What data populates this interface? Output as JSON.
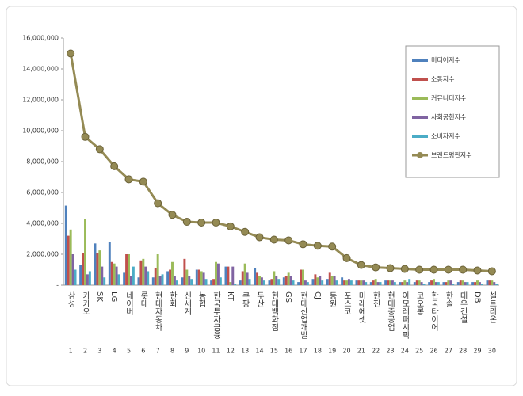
{
  "chart_data": {
    "type": "bar",
    "categories": [
      "삼성",
      "카카오",
      "SK",
      "LG",
      "네이버",
      "롯데",
      "현대자동차",
      "한화",
      "신세계",
      "농협",
      "한국투자금융",
      "KT",
      "쿠팡",
      "두산",
      "현대백화점",
      "GS",
      "현대산업개발",
      "CJ",
      "동원",
      "포스코",
      "미래에셋",
      "한진",
      "현대중공업",
      "아모레퍼시픽",
      "코오롱",
      "한국타이어",
      "한솔",
      "대우건설",
      "DB",
      "셀트리온"
    ],
    "ranks": [
      1,
      2,
      3,
      4,
      5,
      6,
      7,
      8,
      9,
      10,
      11,
      12,
      13,
      14,
      15,
      16,
      17,
      18,
      19,
      20,
      21,
      22,
      23,
      24,
      25,
      26,
      27,
      28,
      29,
      30
    ],
    "ylim": [
      0,
      16000000
    ],
    "yticks": [
      {
        "value": 0,
        "label": "-"
      },
      {
        "value": 2000000,
        "label": "2,000,000"
      },
      {
        "value": 4000000,
        "label": "4,000,000"
      },
      {
        "value": 6000000,
        "label": "6,000,000"
      },
      {
        "value": 8000000,
        "label": "8,000,000"
      },
      {
        "value": 10000000,
        "label": "10,000,000"
      },
      {
        "value": 12000000,
        "label": "12,000,000"
      },
      {
        "value": 14000000,
        "label": "14,000,000"
      },
      {
        "value": 16000000,
        "label": "16,000,000"
      }
    ],
    "grid": false,
    "legend": "top-right",
    "series": [
      {
        "name": "미디어지수",
        "color": "#4f81bd",
        "values": [
          5150000,
          1300000,
          2700000,
          2800000,
          800000,
          500000,
          500000,
          900000,
          500000,
          1000000,
          300000,
          1200000,
          300000,
          1100000,
          300000,
          500000,
          200000,
          400000,
          400000,
          500000,
          300000,
          200000,
          300000,
          200000,
          200000,
          200000,
          200000,
          200000,
          200000,
          300000
        ]
      },
      {
        "name": "소통지수",
        "color": "#c0504d",
        "values": [
          3200000,
          2100000,
          2100000,
          1500000,
          2000000,
          1600000,
          1100000,
          1000000,
          1700000,
          1000000,
          400000,
          1200000,
          900000,
          800000,
          400000,
          600000,
          1000000,
          700000,
          800000,
          300000,
          300000,
          300000,
          300000,
          200000,
          300000,
          300000,
          200000,
          300000,
          200000,
          300000
        ]
      },
      {
        "name": "커뮤니티지수",
        "color": "#9bbb59",
        "values": [
          3600000,
          4300000,
          2250000,
          1400000,
          2000000,
          1700000,
          2000000,
          1500000,
          1000000,
          900000,
          1500000,
          200000,
          1400000,
          600000,
          900000,
          800000,
          1000000,
          500000,
          600000,
          300000,
          300000,
          400000,
          300000,
          300000,
          300000,
          400000,
          300000,
          300000,
          300000,
          300000
        ]
      },
      {
        "name": "사회공헌지수",
        "color": "#8064a2",
        "values": [
          2000000,
          700000,
          1200000,
          1200000,
          600000,
          1200000,
          600000,
          600000,
          600000,
          800000,
          1400000,
          1200000,
          800000,
          500000,
          600000,
          600000,
          300000,
          600000,
          600000,
          400000,
          300000,
          200000,
          300000,
          200000,
          200000,
          200000,
          300000,
          200000,
          200000,
          200000
        ]
      },
      {
        "name": "소비자지수",
        "color": "#4bacc6",
        "values": [
          1000000,
          900000,
          500000,
          700000,
          1200000,
          900000,
          700000,
          300000,
          400000,
          400000,
          500000,
          100000,
          400000,
          300000,
          400000,
          300000,
          200000,
          300000,
          300000,
          300000,
          200000,
          200000,
          200000,
          400000,
          100000,
          200000,
          100000,
          200000,
          100000,
          100000
        ]
      },
      {
        "name": "브랜드평판지수",
        "color": "#948a54",
        "type": "line",
        "values": [
          15000000,
          9600000,
          8800000,
          7700000,
          6850000,
          6700000,
          5300000,
          4550000,
          4100000,
          4050000,
          4050000,
          3800000,
          3450000,
          3100000,
          2950000,
          2900000,
          2650000,
          2550000,
          2500000,
          1750000,
          1300000,
          1150000,
          1100000,
          1050000,
          1000000,
          1000000,
          1000000,
          1000000,
          950000,
          900000
        ]
      }
    ]
  }
}
